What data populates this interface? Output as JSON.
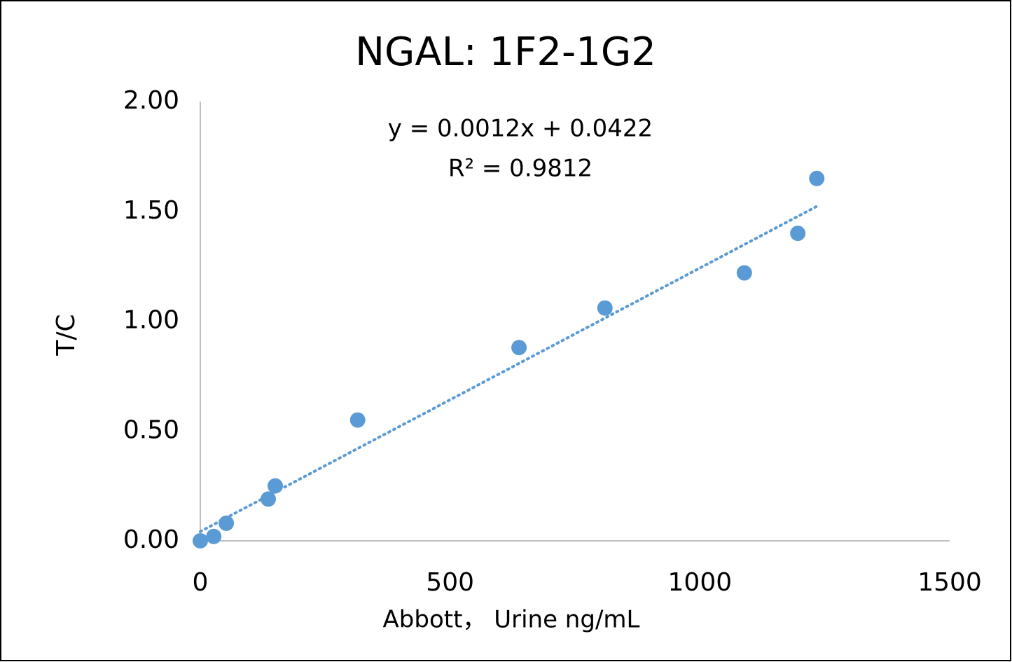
{
  "chart_data": {
    "type": "scatter",
    "title": "NGAL: 1F2-1G2",
    "x_label": "Abbott， Urine ng/mL",
    "y_label": "T/C",
    "series": [
      {
        "name": "NGAL",
        "color": "#5b9bd5",
        "x": [
          0,
          27,
          52,
          136,
          150,
          315,
          638,
          810,
          1089,
          1196,
          1234
        ],
        "values": [
          0.0,
          0.02,
          0.08,
          0.19,
          0.25,
          0.55,
          0.88,
          1.06,
          1.22,
          1.4,
          1.65
        ]
      }
    ],
    "trendline": {
      "slope": 0.0012,
      "intercept": 0.0422,
      "equation": "y = 0.0012x + 0.0422",
      "r2_label": "R² = 0.9812"
    },
    "xlim": [
      0,
      1500
    ],
    "xticks": [
      0,
      500,
      1000,
      1500
    ],
    "ylim": [
      0,
      2
    ],
    "yticks": [
      {
        "value": 0,
        "label": "0.00"
      },
      {
        "value": 0.5,
        "label": "0.50"
      },
      {
        "value": 1,
        "label": "1.00"
      },
      {
        "value": 1.5,
        "label": "1.50"
      },
      {
        "value": 2,
        "label": "2.00"
      }
    ],
    "grid": false
  }
}
